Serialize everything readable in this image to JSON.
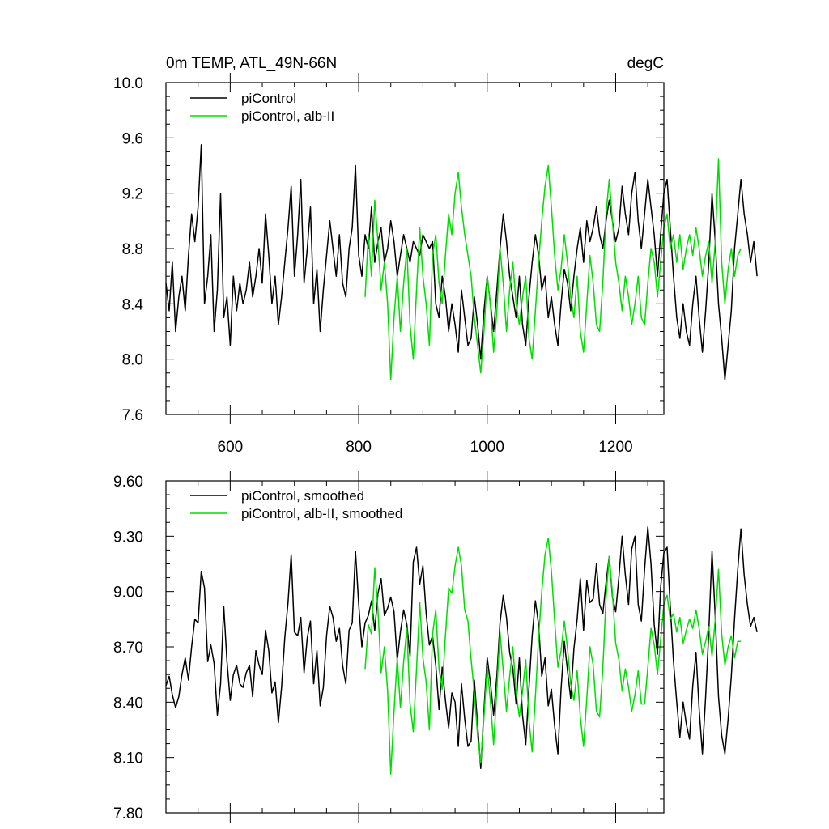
{
  "chart_data": [
    {
      "type": "line",
      "title_left": "0m TEMP, ATL_49N-66N",
      "title_right": "degC",
      "xlim": [
        500,
        1275
      ],
      "ylim": [
        7.6,
        10.0
      ],
      "xticks": [
        600,
        800,
        1000,
        1200
      ],
      "xtick_labels": [
        "600",
        "800",
        "1000",
        "1200"
      ],
      "yticks": [
        7.6,
        8.0,
        8.4,
        8.8,
        9.2,
        9.6,
        10.0
      ],
      "ytick_labels": [
        "7.6",
        "8.0",
        "8.4",
        "8.8",
        "9.2",
        "9.6",
        "10.0"
      ],
      "series": [
        {
          "name": "piControl",
          "color": "#000000",
          "x_start": 500,
          "x_step": 5,
          "values": [
            8.55,
            8.35,
            8.7,
            8.2,
            8.45,
            8.6,
            8.35,
            8.75,
            9.05,
            8.85,
            9.1,
            9.55,
            8.4,
            8.6,
            8.9,
            8.2,
            8.5,
            9.2,
            8.3,
            8.45,
            8.1,
            8.6,
            8.35,
            8.55,
            8.4,
            8.5,
            8.7,
            8.45,
            8.6,
            8.8,
            8.55,
            9.05,
            8.75,
            8.4,
            8.6,
            8.25,
            8.45,
            8.7,
            8.95,
            9.25,
            8.6,
            8.9,
            9.3,
            8.55,
            8.8,
            9.1,
            8.4,
            8.65,
            8.2,
            8.5,
            8.75,
            9.0,
            8.8,
            8.6,
            8.9,
            8.55,
            8.45,
            8.8,
            8.95,
            9.4,
            8.75,
            8.6,
            8.9,
            8.8,
            9.1,
            8.7,
            8.85,
            8.95,
            8.7,
            8.8,
            9.0,
            8.85,
            8.6,
            8.75,
            8.9,
            8.8,
            8.7,
            8.85,
            8.8,
            8.75,
            8.9,
            8.85,
            8.8,
            8.85,
            8.4,
            8.3,
            8.6,
            8.45,
            8.2,
            8.4,
            8.25,
            8.05,
            8.5,
            8.3,
            8.1,
            8.15,
            8.45,
            8.25,
            8.0,
            8.35,
            8.6,
            8.4,
            8.2,
            8.5,
            8.8,
            9.05,
            8.85,
            8.6,
            8.45,
            8.3,
            8.6,
            8.25,
            8.1,
            8.45,
            8.7,
            8.9,
            8.75,
            8.5,
            8.6,
            8.3,
            8.45,
            8.25,
            8.1,
            8.4,
            8.65,
            8.55,
            8.35,
            8.6,
            8.8,
            8.95,
            8.7,
            9.0,
            8.85,
            8.95,
            9.1,
            8.9,
            8.8,
            9.0,
            9.15,
            9.0,
            8.85,
            8.95,
            9.25,
            9.05,
            8.9,
            9.2,
            9.35,
            9.0,
            8.8,
            9.05,
            9.3,
            9.1,
            8.9,
            8.6,
            8.9,
            9.2,
            9.3,
            8.95,
            8.6,
            8.3,
            8.15,
            8.4,
            8.2,
            8.1,
            8.4,
            8.6,
            8.3,
            8.05,
            8.35,
            8.7,
            9.2,
            8.85,
            8.4,
            8.15,
            7.85,
            8.1,
            8.35,
            8.8,
            9.05,
            9.3,
            9.05,
            8.9,
            8.7,
            8.85,
            8.6
          ],
          "smoothed": false
        },
        {
          "name": "piControl, alb-II",
          "color": "#00dd00",
          "x_start": 810,
          "x_step": 5,
          "values": [
            8.45,
            8.9,
            8.6,
            9.15,
            8.85,
            8.5,
            8.7,
            8.4,
            7.85,
            8.3,
            8.6,
            8.2,
            8.55,
            8.8,
            8.25,
            8.0,
            8.5,
            8.95,
            8.6,
            8.4,
            8.1,
            8.75,
            8.9,
            8.55,
            8.4,
            8.75,
            9.05,
            8.9,
            9.2,
            9.35,
            9.1,
            8.9,
            8.75,
            8.6,
            8.3,
            8.1,
            7.9,
            8.2,
            8.6,
            8.4,
            8.05,
            8.35,
            8.8,
            8.55,
            8.2,
            8.5,
            8.7,
            8.4,
            8.25,
            8.45,
            8.6,
            8.15,
            8.0,
            8.35,
            8.7,
            9.0,
            9.25,
            9.4,
            9.1,
            8.75,
            8.5,
            8.65,
            8.9,
            8.7,
            8.45,
            8.3,
            8.6,
            8.2,
            8.05,
            8.4,
            8.75,
            8.55,
            8.25,
            8.2,
            8.55,
            9.05,
            9.3,
            9.0,
            8.7,
            8.55,
            8.35,
            8.6,
            8.45,
            8.25,
            8.4,
            8.6,
            8.3,
            8.25,
            8.55,
            8.8,
            8.7,
            8.45,
            8.7,
            8.95,
            9.05,
            8.8,
            8.9,
            8.7,
            8.9,
            8.65,
            8.8,
            8.9,
            8.75,
            8.95,
            8.8,
            8.6,
            8.75,
            8.85,
            8.55,
            8.85,
            9.45,
            8.7,
            8.4,
            8.65,
            8.8,
            8.6,
            8.75,
            8.8
          ],
          "smoothed": false
        }
      ]
    },
    {
      "type": "line",
      "title_left": "",
      "title_right": "",
      "xlim": [
        500,
        1275
      ],
      "ylim": [
        7.8,
        9.6
      ],
      "xticks": [
        600,
        800,
        1000,
        1200
      ],
      "xtick_labels": [],
      "yticks": [
        7.8,
        8.1,
        8.4,
        8.7,
        9.0,
        9.3,
        9.6
      ],
      "ytick_labels": [
        "7.80",
        "8.10",
        "8.40",
        "8.70",
        "9.00",
        "9.30",
        "9.60"
      ],
      "series": [
        {
          "name": "piControl, smoothed",
          "color": "#000000",
          "x_start": 500,
          "x_step": 5,
          "values": [
            8.49,
            8.54,
            8.44,
            8.37,
            8.43,
            8.55,
            8.64,
            8.52,
            8.7,
            8.85,
            8.83,
            9.11,
            9.02,
            8.62,
            8.71,
            8.61,
            8.33,
            8.5,
            8.92,
            8.62,
            8.41,
            8.55,
            8.6,
            8.5,
            8.48,
            8.56,
            8.6,
            8.43,
            8.68,
            8.6,
            8.55,
            8.79,
            8.68,
            8.45,
            8.51,
            8.29,
            8.48,
            8.75,
            8.94,
            9.2,
            8.78,
            8.76,
            8.86,
            8.56,
            8.75,
            8.84,
            8.5,
            8.68,
            8.38,
            8.48,
            8.76,
            8.92,
            8.86,
            8.73,
            8.8,
            8.6,
            8.5,
            8.79,
            8.83,
            9.22,
            8.93,
            8.7,
            8.83,
            8.87,
            8.95,
            8.79,
            8.99,
            9.07,
            8.87,
            8.91,
            8.97,
            8.89,
            8.63,
            8.78,
            8.9,
            8.82,
            8.65,
            9.16,
            9.24,
            9.04,
            9.14,
            8.88,
            8.71,
            8.76,
            8.6,
            8.36,
            8.59,
            8.41,
            8.26,
            8.45,
            8.4,
            8.16,
            8.5,
            8.31,
            8.16,
            8.19,
            8.52,
            8.28,
            8.04,
            8.36,
            8.64,
            8.51,
            8.33,
            8.54,
            8.83,
            8.98,
            8.86,
            8.67,
            8.58,
            8.39,
            8.64,
            8.33,
            8.17,
            8.48,
            8.76,
            8.95,
            8.82,
            8.54,
            8.64,
            8.38,
            8.47,
            8.27,
            8.12,
            8.47,
            8.73,
            8.57,
            8.42,
            8.69,
            8.85,
            9.07,
            8.79,
            9.06,
            8.94,
            8.96,
            9.15,
            8.93,
            8.88,
            9.05,
            9.19,
            8.97,
            8.89,
            9.08,
            9.3,
            9.09,
            8.93,
            9.23,
            9.3,
            8.93,
            8.84,
            9.12,
            9.35,
            9.15,
            8.82,
            8.66,
            9.02,
            9.21,
            9.24,
            8.92,
            8.62,
            8.4,
            8.21,
            8.4,
            8.28,
            8.2,
            8.49,
            8.67,
            8.36,
            8.12,
            8.43,
            8.78,
            9.22,
            8.86,
            8.43,
            8.22,
            8.12,
            8.31,
            8.54,
            8.85,
            9.12,
            9.34,
            9.09,
            8.93,
            8.81,
            8.86,
            8.78
          ],
          "smoothed": true
        },
        {
          "name": "piControl, alb-II, smoothed",
          "color": "#00dd00",
          "x_start": 810,
          "x_step": 5,
          "values": [
            8.58,
            8.82,
            8.77,
            9.13,
            8.9,
            8.56,
            8.7,
            8.46,
            8.01,
            8.35,
            8.64,
            8.37,
            8.62,
            8.8,
            8.39,
            8.24,
            8.58,
            8.94,
            8.64,
            8.51,
            8.25,
            8.77,
            8.9,
            8.58,
            8.47,
            8.76,
            9.02,
            8.99,
            9.14,
            9.24,
            9.14,
            8.9,
            8.84,
            8.63,
            8.45,
            8.22,
            8.07,
            8.32,
            8.59,
            8.41,
            8.17,
            8.47,
            8.78,
            8.57,
            8.35,
            8.54,
            8.7,
            8.45,
            8.32,
            8.46,
            8.63,
            8.3,
            8.13,
            8.43,
            8.75,
            9.0,
            9.2,
            9.29,
            9.11,
            8.84,
            8.59,
            8.68,
            8.84,
            8.69,
            8.5,
            8.41,
            8.57,
            8.32,
            8.16,
            8.42,
            8.7,
            8.6,
            8.35,
            8.32,
            8.58,
            8.97,
            9.19,
            8.99,
            8.72,
            8.63,
            8.46,
            8.58,
            8.48,
            8.35,
            8.44,
            8.57,
            8.39,
            8.39,
            8.59,
            8.8,
            8.71,
            8.55,
            8.74,
            8.93,
            8.98,
            8.85,
            8.88,
            8.78,
            8.86,
            8.72,
            8.79,
            8.85,
            8.8,
            8.9,
            8.8,
            8.66,
            8.73,
            8.81,
            8.65,
            8.85,
            9.12,
            8.77,
            8.6,
            8.7,
            8.76,
            8.64,
            8.73,
            8.73
          ],
          "smoothed": true
        }
      ]
    }
  ]
}
